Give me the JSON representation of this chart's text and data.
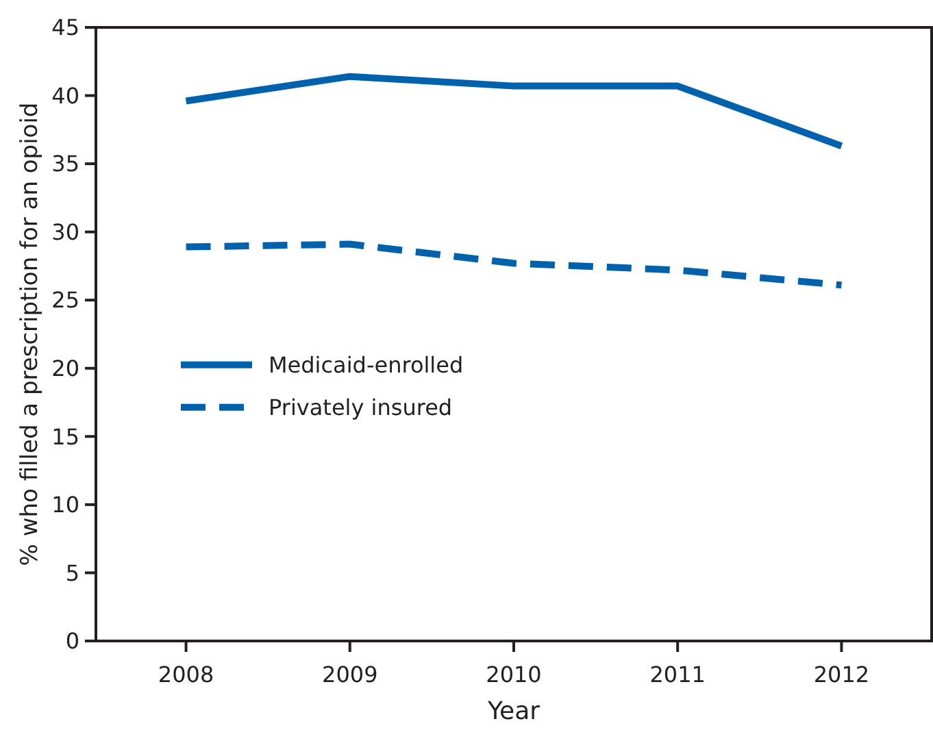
{
  "chart_data": {
    "type": "line",
    "xlabel": "Year",
    "ylabel": "% who filled a prescription for an opioid",
    "categories": [
      "2008",
      "2009",
      "2010",
      "2011",
      "2012"
    ],
    "series": [
      {
        "name": "Medicaid-enrolled",
        "color": "#0061ad",
        "values": [
          39.6,
          41.4,
          40.7,
          40.7,
          36.3
        ],
        "line_style": "solid"
      },
      {
        "name": "Privately insured",
        "color": "#0061ad",
        "values": [
          28.9,
          29.1,
          27.7,
          27.2,
          26.1
        ],
        "line_style": "dashed"
      }
    ],
    "ylim": [
      0,
      45
    ],
    "yticks": [
      0,
      5,
      10,
      15,
      20,
      25,
      30,
      35,
      40,
      45
    ],
    "legend": "left",
    "marker": "none",
    "grid": false
  }
}
